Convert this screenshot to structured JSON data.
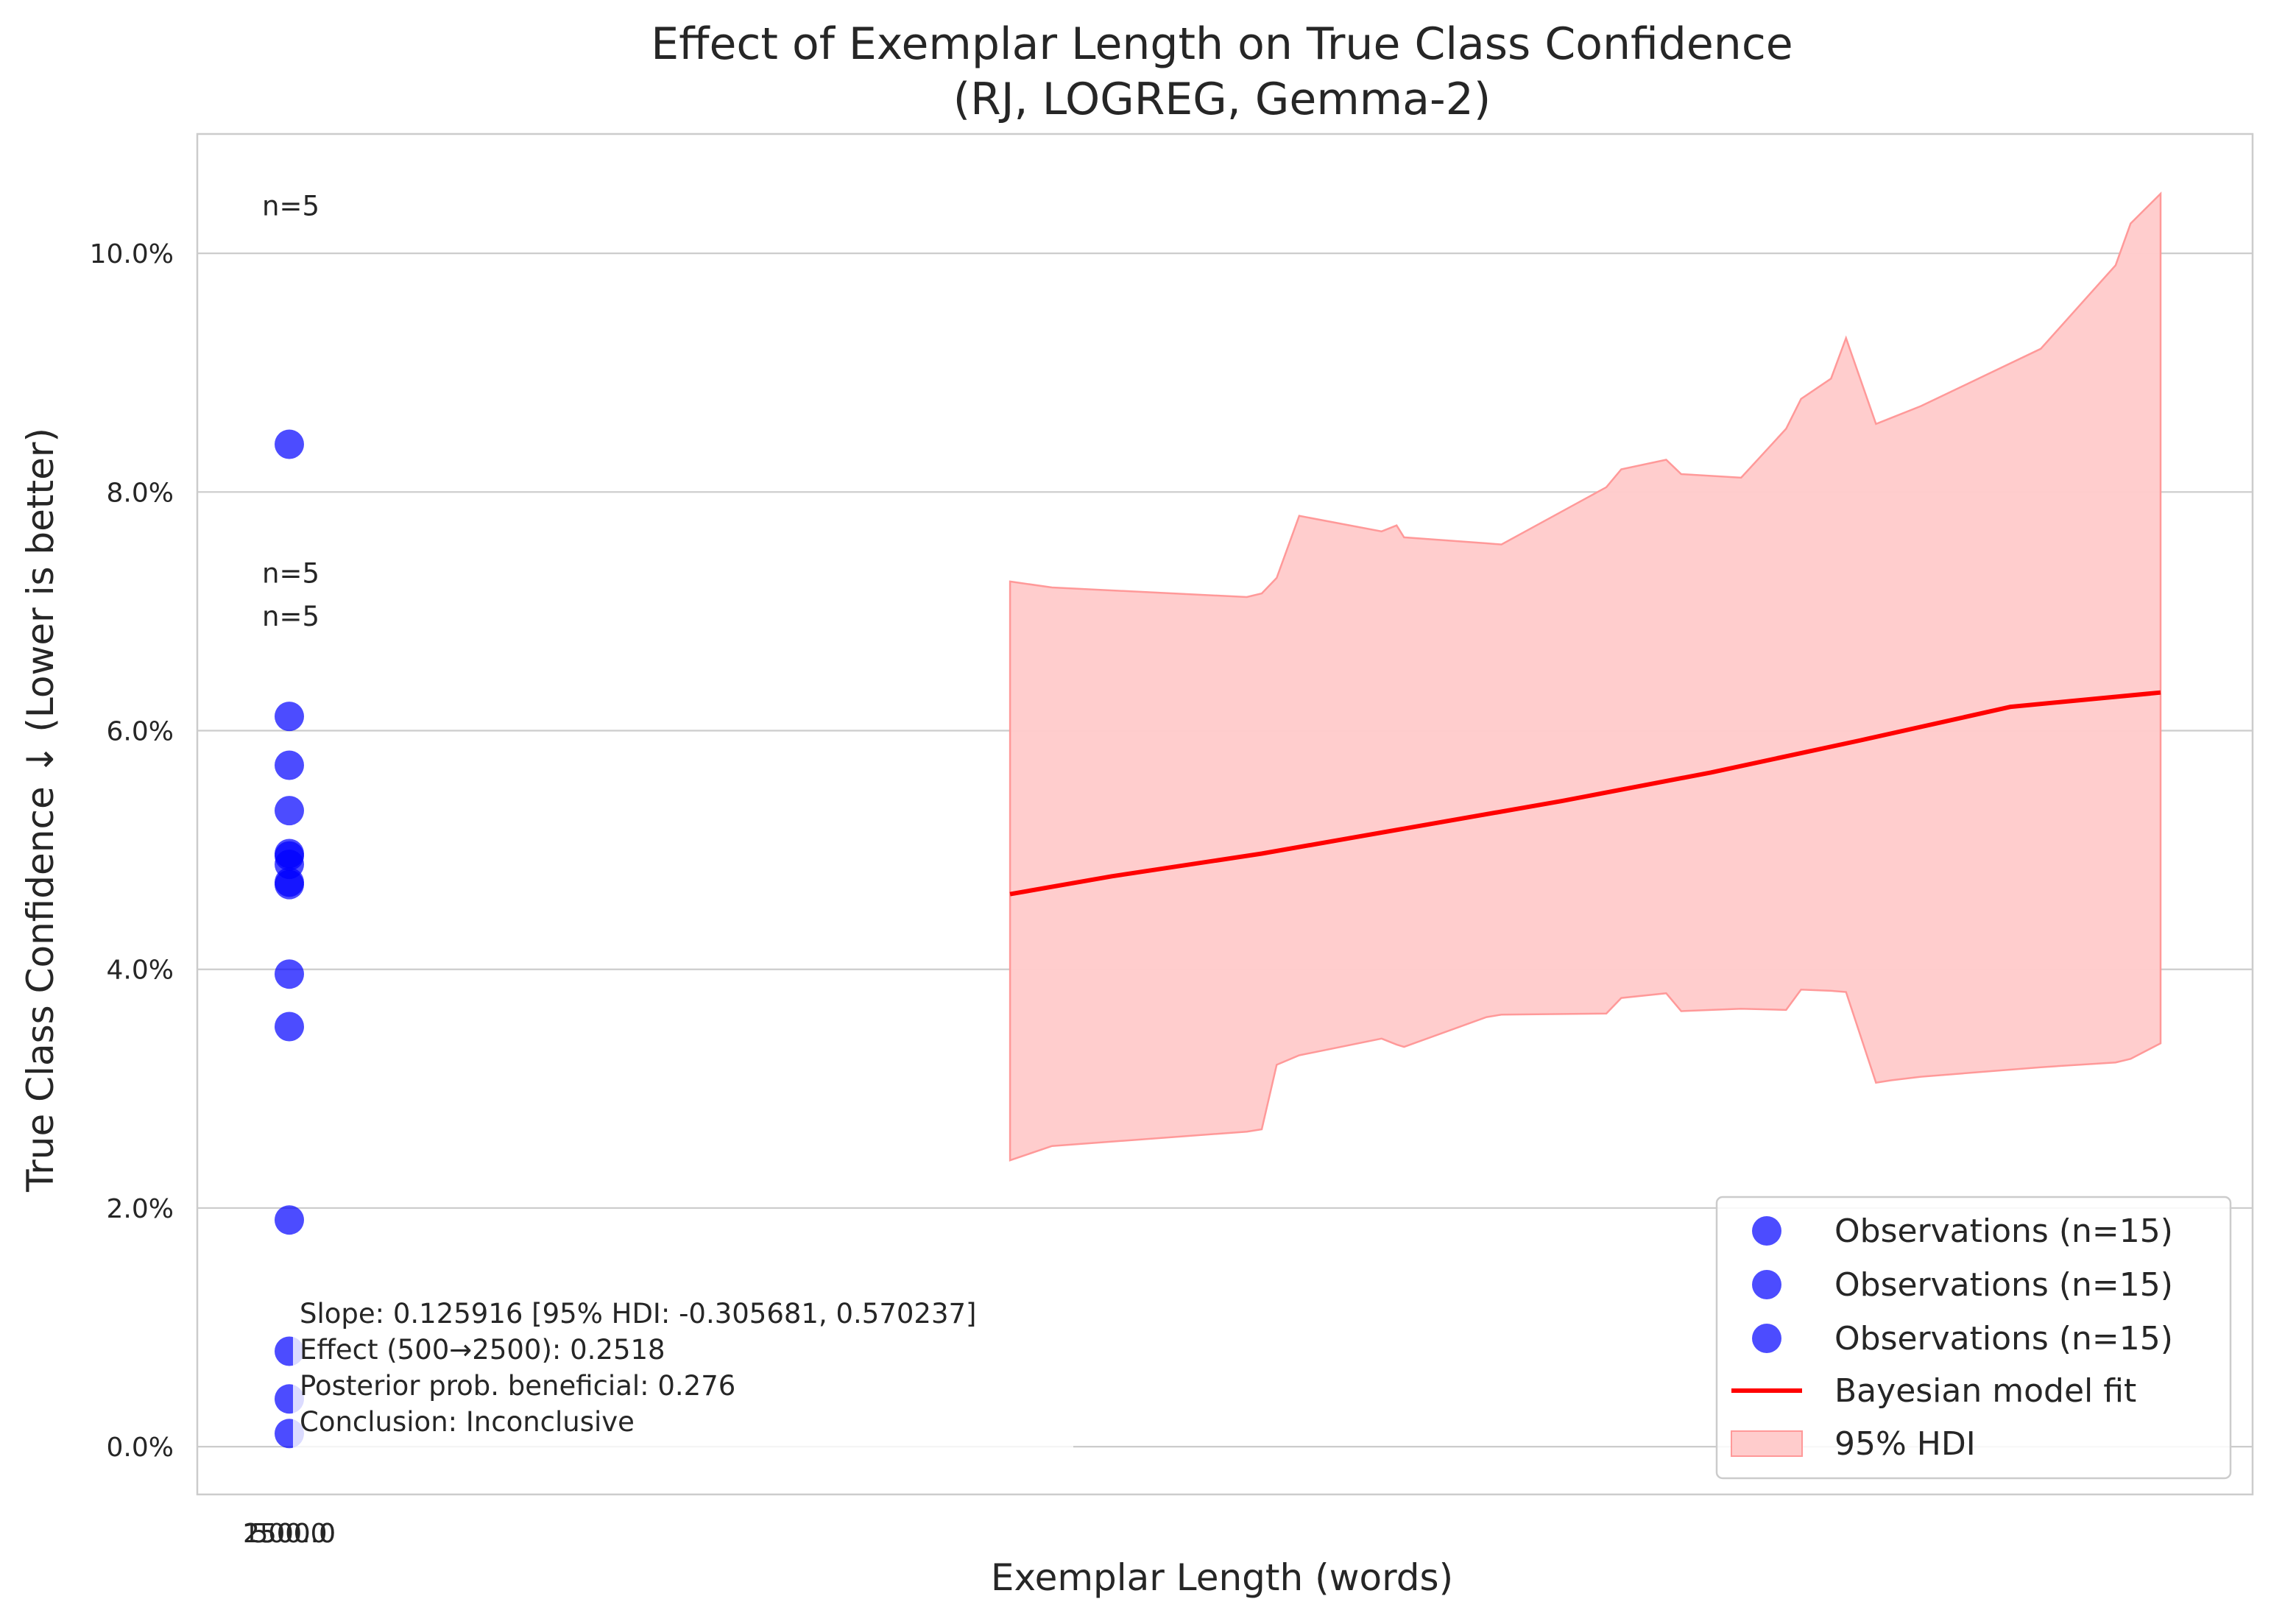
{
  "chart_data": {
    "type": "scatter",
    "title": "Effect of Exemplar Length on True Class Confidence",
    "subtitle": "(RJ, LOGREG, Gemma-2)",
    "xlabel": "Exemplar Length (words)",
    "ylabel": "True Class Confidence ↓ (Lower is better)",
    "x_tick_labels": [
      "2500.0",
      "1500.0",
      "500.0"
    ],
    "y_ticks": [
      0.0,
      2.0,
      4.0,
      6.0,
      8.0,
      10.0
    ],
    "y_tick_labels": [
      "0.0%",
      "2.0%",
      "4.0%",
      "6.0%",
      "8.0%",
      "10.0%"
    ],
    "ylim": [
      -0.4,
      11.0
    ],
    "plot_x_range": [
      0.0,
      1.0
    ],
    "grid": true,
    "legend_position": "lower right",
    "colors": {
      "points": "#0000ff",
      "fit": "#ff0000",
      "hdi_fill": "#ffcccc",
      "hdi_edge": "#ff9999",
      "grid": "#cccccc",
      "spine": "#cccccc"
    },
    "observations": {
      "name": "Observations (n=15)",
      "y": [
        8.4,
        6.12,
        5.71,
        5.33,
        4.97,
        4.95,
        4.88,
        4.73,
        4.71,
        3.96,
        3.52,
        1.9,
        0.8,
        0.4,
        0.11
      ]
    },
    "fit": {
      "name": "Bayesian model fit",
      "x": [
        0.232,
        0.3,
        0.4,
        0.5,
        0.6,
        0.7,
        0.8,
        0.9,
        1.0
      ],
      "y": [
        4.63,
        4.78,
        4.97,
        5.19,
        5.41,
        5.65,
        5.92,
        6.2,
        6.32
      ]
    },
    "hdi": {
      "name": "95% HDI",
      "x": [
        0.232,
        0.26,
        0.39,
        0.4,
        0.41,
        0.425,
        0.48,
        0.49,
        0.495,
        0.55,
        0.56,
        0.63,
        0.64,
        0.67,
        0.68,
        0.72,
        0.75,
        0.76,
        0.78,
        0.79,
        0.81,
        0.82,
        0.84,
        0.92,
        0.97,
        0.98,
        1.0
      ],
      "upper": [
        7.25,
        7.2,
        7.12,
        7.15,
        7.28,
        7.8,
        7.67,
        7.72,
        7.62,
        7.57,
        7.56,
        8.04,
        8.19,
        8.27,
        8.15,
        8.12,
        8.53,
        8.78,
        8.95,
        9.29,
        8.57,
        8.62,
        8.72,
        9.2,
        9.9,
        10.25,
        10.5
      ],
      "lower": [
        2.4,
        2.52,
        2.64,
        2.66,
        3.2,
        3.28,
        3.42,
        3.37,
        3.35,
        3.6,
        3.62,
        3.63,
        3.76,
        3.8,
        3.65,
        3.67,
        3.66,
        3.83,
        3.82,
        3.81,
        3.05,
        3.07,
        3.1,
        3.18,
        3.22,
        3.25,
        3.38
      ]
    },
    "n_labels": [
      {
        "text": "n=5",
        "y": 10.4
      },
      {
        "text": "n=5",
        "y": 7.32
      },
      {
        "text": "n=5",
        "y": 6.96
      }
    ],
    "annotation_lines": [
      "Slope: 0.125916 [95% HDI: -0.305681, 0.570237]",
      "Effect (500→2500): 0.2518",
      "Posterior prob. beneficial: 0.276",
      "Conclusion: Inconclusive"
    ],
    "legend": [
      {
        "label": "Observations (n=15)",
        "kind": "marker"
      },
      {
        "label": "Observations (n=15)",
        "kind": "marker"
      },
      {
        "label": "Observations (n=15)",
        "kind": "marker"
      },
      {
        "label": "Bayesian model fit",
        "kind": "line"
      },
      {
        "label": "95% HDI",
        "kind": "patch"
      }
    ]
  }
}
